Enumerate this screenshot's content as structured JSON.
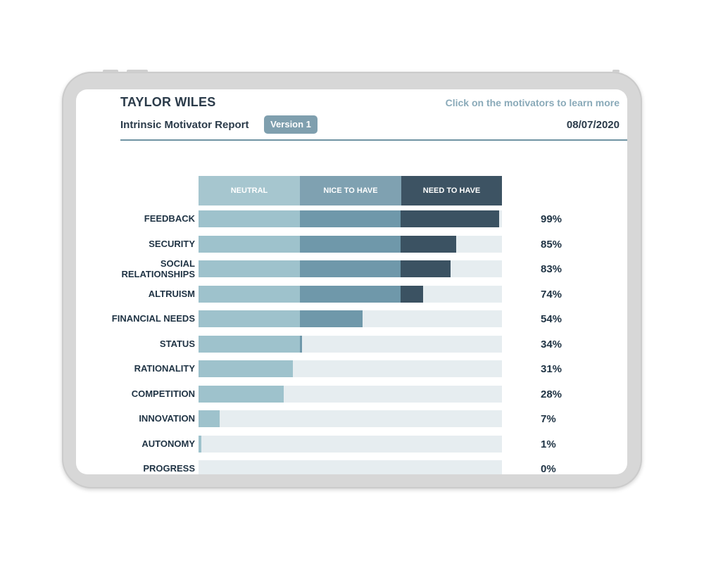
{
  "header": {
    "name": "TAYLOR WILES",
    "subtitle": "Intrinsic Motivator Report",
    "version_label": "Version 1",
    "hint": "Click on the motivators to learn more",
    "date": "08/07/2020"
  },
  "colors": {
    "neutral": "#9ec2cc",
    "nice_to_have": "#6f98aa",
    "need_to_have": "#3b5262",
    "track": "#e6edf0",
    "accent_text": "#8aaab9"
  },
  "chart_data": {
    "type": "bar",
    "orientation": "horizontal",
    "zones": [
      "NEUTRAL",
      "NICE TO HAVE",
      "NEED TO HAVE"
    ],
    "xlim": [
      0,
      100
    ],
    "categories": [
      "FEEDBACK",
      "SECURITY",
      "SOCIAL RELATIONSHIPS",
      "ALTRUISM",
      "FINANCIAL NEEDS",
      "STATUS",
      "RATIONALITY",
      "COMPETITION",
      "INNOVATION",
      "AUTONOMY",
      "PROGRESS"
    ],
    "values": [
      99,
      85,
      83,
      74,
      54,
      34,
      31,
      28,
      7,
      1,
      0
    ],
    "labels": [
      "99%",
      "85%",
      "83%",
      "74%",
      "54%",
      "34%",
      "31%",
      "28%",
      "7%",
      "1%",
      "0%"
    ]
  }
}
